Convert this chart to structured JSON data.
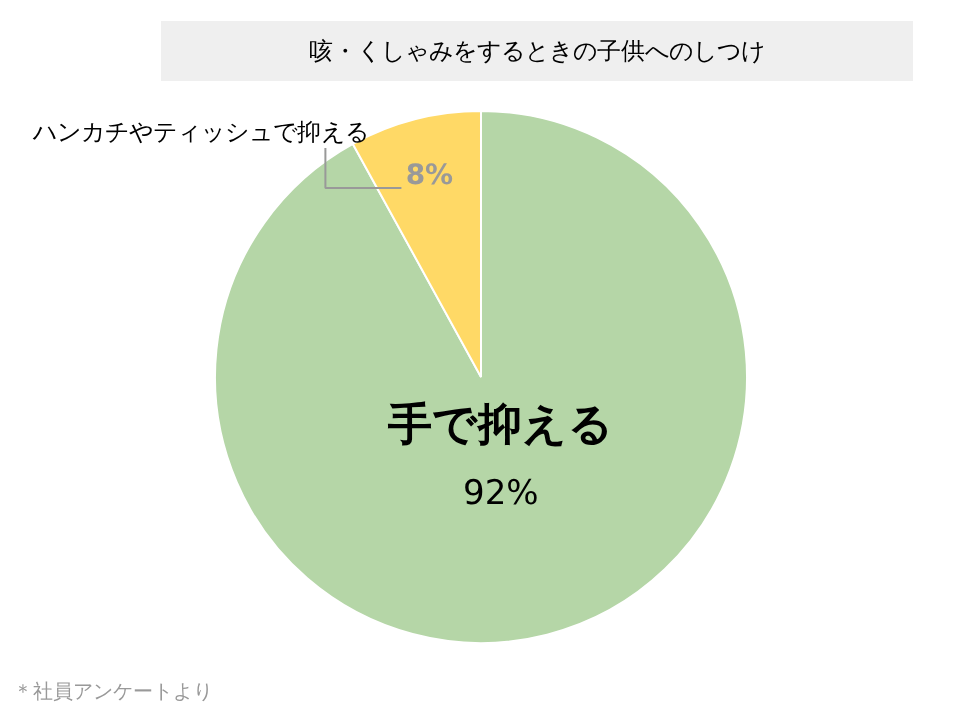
{
  "chart_data": {
    "type": "pie",
    "title": "咳・くしゃみをするときの子供へのしつけ",
    "categories": [
      "手で抑える",
      "ハンカチやティッシュで抑える"
    ],
    "values": [
      92,
      8
    ],
    "colors": [
      "#b5d6a7",
      "#ffd966"
    ],
    "value_labels": [
      "92%",
      "8%"
    ],
    "annotations": [
      "＊社員アンケートより"
    ]
  }
}
